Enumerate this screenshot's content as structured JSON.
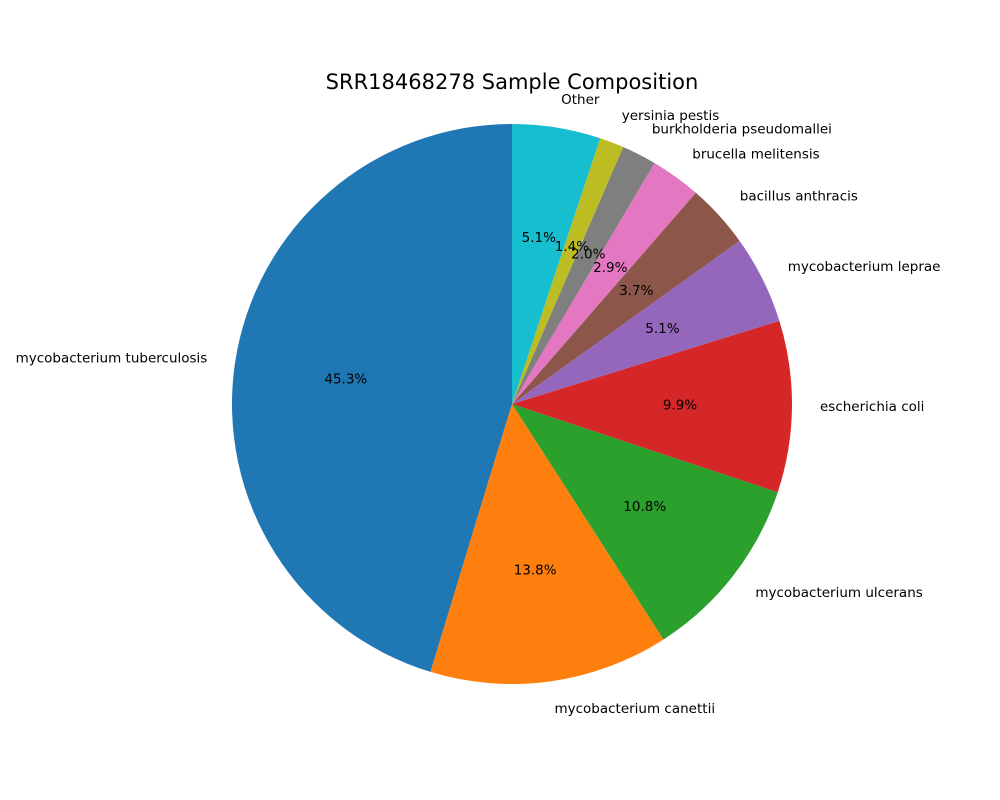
{
  "chart_data": {
    "type": "pie",
    "title": "SRR18468278 Sample Composition",
    "start_angle_deg": 90,
    "direction": "counterclockwise",
    "slices": [
      {
        "label": "mycobacterium tuberculosis",
        "value": 45.3,
        "pct_label": "45.3%",
        "color": "#1f77b4"
      },
      {
        "label": "mycobacterium canettii",
        "value": 13.8,
        "pct_label": "13.8%",
        "color": "#ff7f0e"
      },
      {
        "label": "mycobacterium ulcerans",
        "value": 10.8,
        "pct_label": "10.8%",
        "color": "#2ca02c"
      },
      {
        "label": "escherichia coli",
        "value": 9.9,
        "pct_label": "9.9%",
        "color": "#d62728"
      },
      {
        "label": "mycobacterium leprae",
        "value": 5.1,
        "pct_label": "5.1%",
        "color": "#9467bd"
      },
      {
        "label": "bacillus anthracis",
        "value": 3.7,
        "pct_label": "3.7%",
        "color": "#8c564b"
      },
      {
        "label": "brucella melitensis",
        "value": 2.9,
        "pct_label": "2.9%",
        "color": "#e377c2"
      },
      {
        "label": "burkholderia pseudomallei",
        "value": 2.0,
        "pct_label": "2.0%",
        "color": "#7f7f7f"
      },
      {
        "label": "yersinia pestis",
        "value": 1.4,
        "pct_label": "1.4%",
        "color": "#bcbd22"
      },
      {
        "label": "Other",
        "value": 5.1,
        "pct_label": "5.1%",
        "color": "#17becf"
      }
    ]
  }
}
